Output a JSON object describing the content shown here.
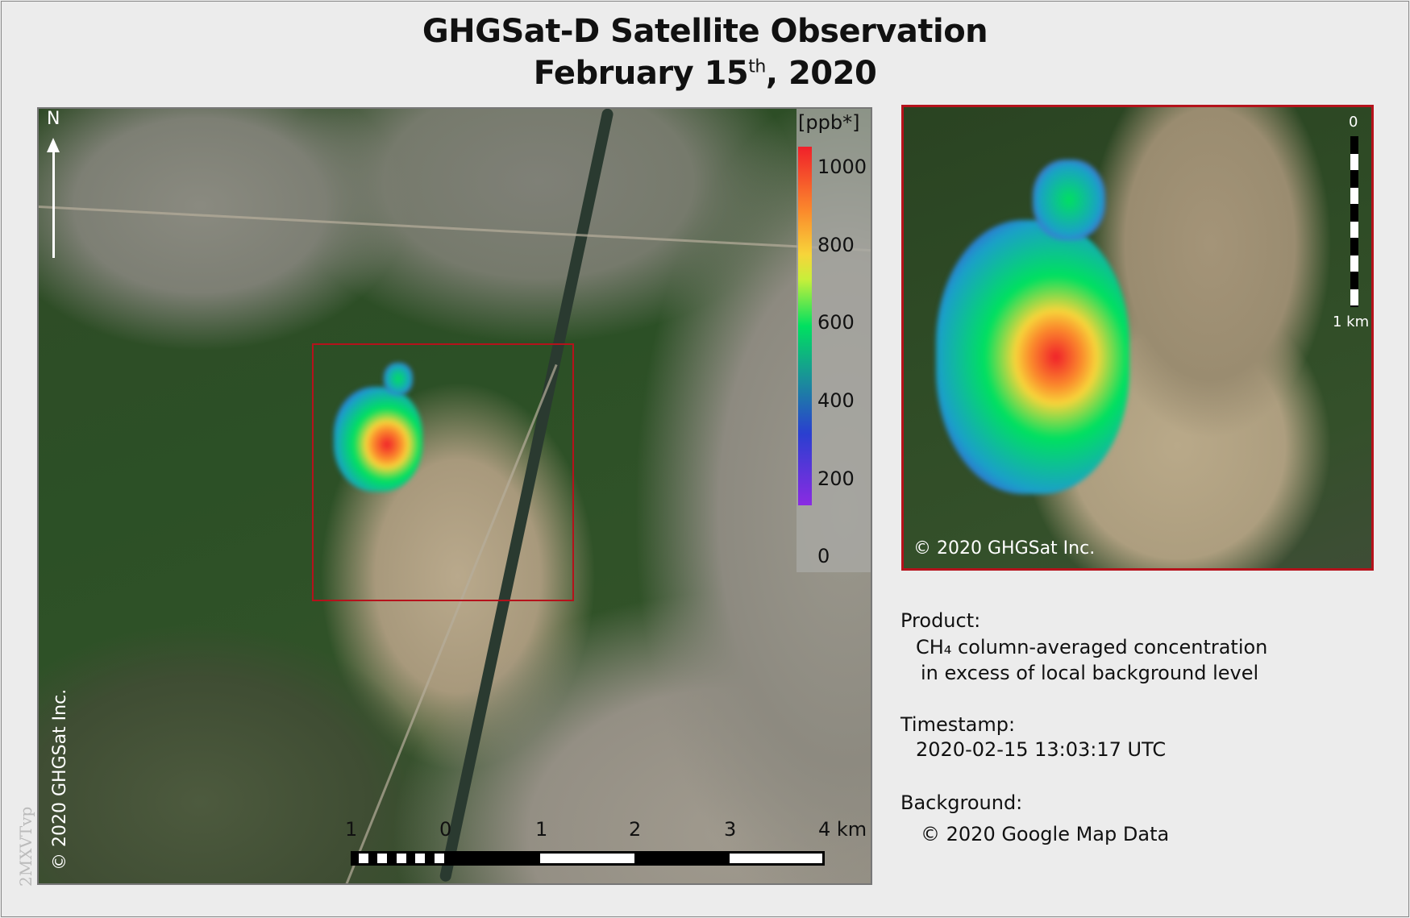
{
  "title": {
    "line1": "GHGSat-D Satellite Observation",
    "line2_prefix": "February 15",
    "line2_sup": "th",
    "line2_suffix": ", 2020"
  },
  "map": {
    "north_label": "N",
    "copyright": "© 2020 GHGSat Inc.",
    "colorbar": {
      "unit": "[ppb*]",
      "ticks": [
        "1000",
        "800",
        "600",
        "400",
        "200",
        "0"
      ],
      "min": 0,
      "max": 1000,
      "colormap": [
        "#8a2be2",
        "#2a3fd0",
        "#00e060",
        "#f7d43a",
        "#fb8a2c",
        "#f0202a"
      ]
    },
    "scalebar": {
      "labels": [
        "1",
        "0",
        "1",
        "2",
        "3",
        "4 km"
      ]
    },
    "highlight_color": "#b5121b"
  },
  "inset": {
    "copyright": "© 2020 GHGSat Inc.",
    "scale_top": "0",
    "scale_bottom": "1 km"
  },
  "info": {
    "product_label": "Product:",
    "product_line1": "CH₄ column-averaged concentration",
    "product_line2": "in excess of local background level",
    "timestamp_label": "Timestamp:",
    "timestamp_value": "2020-02-15 13:03:17 UTC",
    "background_label": "Background:",
    "background_value": "© 2020 Google Map Data"
  },
  "watermark": "2MXVTvp"
}
